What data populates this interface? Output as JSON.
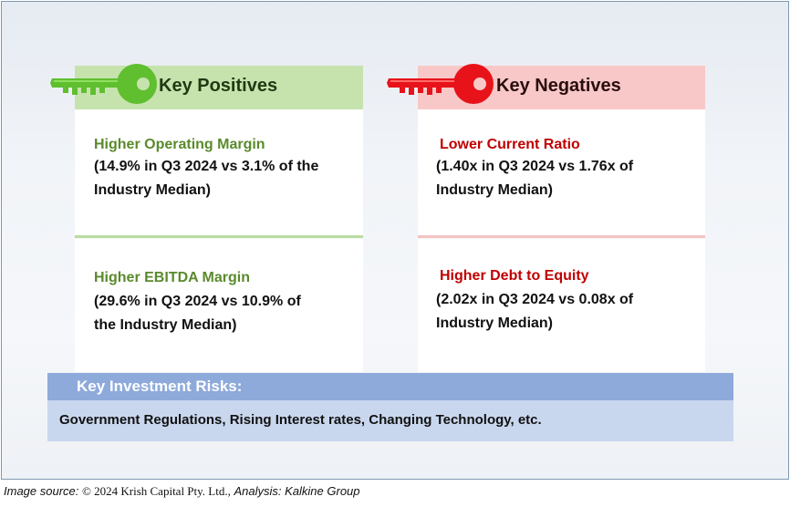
{
  "positives": {
    "header": "Key Positives",
    "accent": "#5fbf2f",
    "items": [
      {
        "title": "Higher Operating Margin",
        "detail_line1": "(14.9% in Q3 2024 vs 3.1% of the",
        "detail_line2": "Industry Median)"
      },
      {
        "title": "Higher EBITDA Margin",
        "detail_line1": "(29.6% in Q3 2024 vs 10.9% of",
        "detail_line2": "the Industry Median)"
      }
    ]
  },
  "negatives": {
    "header": "Key Negatives",
    "accent": "#e8131a",
    "items": [
      {
        "title": "Lower Current Ratio",
        "detail_line1": "(1.40x in Q3 2024 vs 1.76x of",
        "detail_line2": "Industry Median)"
      },
      {
        "title": "Higher Debt to Equity",
        "detail_line1": "(2.02x in Q3 2024 vs 0.08x of",
        "detail_line2": "Industry Median)"
      }
    ]
  },
  "risks": {
    "title": "Key Investment Risks:",
    "text": "Government Regulations, Rising Interest rates, Changing Technology, etc."
  },
  "source": {
    "label": "Image source:",
    "copyright": "© 2024 Krish Capital Pty. Ltd.,",
    "analysis": "Analysis: Kalkine Group"
  },
  "icons": {
    "positive_key": "green-key-icon",
    "negative_key": "red-key-icon"
  }
}
